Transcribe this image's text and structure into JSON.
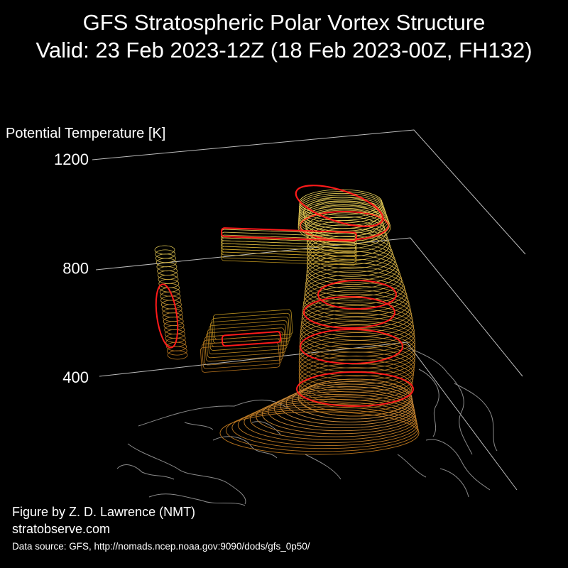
{
  "title": "GFS Stratospheric Polar Vortex Structure",
  "subtitle": "Valid: 23 Feb 2023-12Z  (18 Feb 2023-00Z, FH132)",
  "chart_data": {
    "type": "3d-isosurface",
    "zlabel": "Potential Temperature [K]",
    "zticks": [
      400,
      800,
      1200
    ],
    "zlim": [
      400,
      1200
    ],
    "grid": true,
    "background": "#000000",
    "colors": {
      "low_level_contours": "#b8741d",
      "upper_level_contours": "#e8d05a",
      "highlight_contours": "#ff1a1a",
      "coastlines": "#8a8a8a",
      "axes": "#bbbbbb"
    }
  },
  "credits": {
    "author": "Figure by Z. D. Lawrence (NMT)",
    "site": "stratobserve.com",
    "source": "Data source: GFS, http://nomads.ncep.noaa.gov:9090/dods/gfs_0p50/"
  }
}
